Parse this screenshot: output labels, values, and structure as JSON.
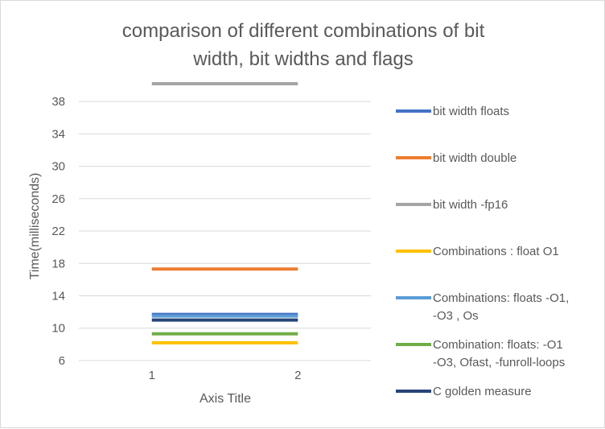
{
  "chart_data": {
    "type": "line",
    "title_lines": [
      "comparison of different combinations of bit",
      "width, bit widths and flags"
    ],
    "xlabel": "Axis Title",
    "ylabel": "Time(milliseconds)",
    "categories": [
      "1",
      "2"
    ],
    "ylim": [
      5,
      40
    ],
    "yticks": [
      6,
      10,
      14,
      18,
      22,
      26,
      30,
      34,
      38
    ],
    "grid": true,
    "legend_position": "right",
    "series": [
      {
        "name": "bit width floats",
        "color": "#4472c4",
        "values": [
          11.7,
          11.7
        ]
      },
      {
        "name": "bit width double",
        "color": "#ed7d31",
        "values": [
          17.3,
          17.3
        ]
      },
      {
        "name": "bit width -fp16",
        "color": "#a5a5a5",
        "values": [
          40.2,
          40.2
        ]
      },
      {
        "name": "Combinations : float O1",
        "color": "#ffc000",
        "values": [
          8.2,
          8.2
        ]
      },
      {
        "name": "Combinations: floats -O1, -O3 , Os",
        "color": "#5b9bd5",
        "values": [
          11.5,
          11.5
        ]
      },
      {
        "name": "Combination: floats: -O1 -O3, Ofast, -funroll-loops",
        "color": "#70ad47",
        "values": [
          9.3,
          9.3
        ]
      },
      {
        "name": "C golden measure",
        "color": "#264478",
        "values": [
          11.0,
          11.0
        ]
      }
    ],
    "legend_lines": [
      [
        "bit width floats"
      ],
      [
        "bit width double"
      ],
      [
        "bit width -fp16"
      ],
      [
        "Combinations : float O1"
      ],
      [
        "Combinations: floats -O1,",
        "-O3 , Os"
      ],
      [
        "Combination: floats: -O1",
        "-O3, Ofast, -funroll-loops"
      ],
      [
        "C golden measure"
      ]
    ]
  }
}
